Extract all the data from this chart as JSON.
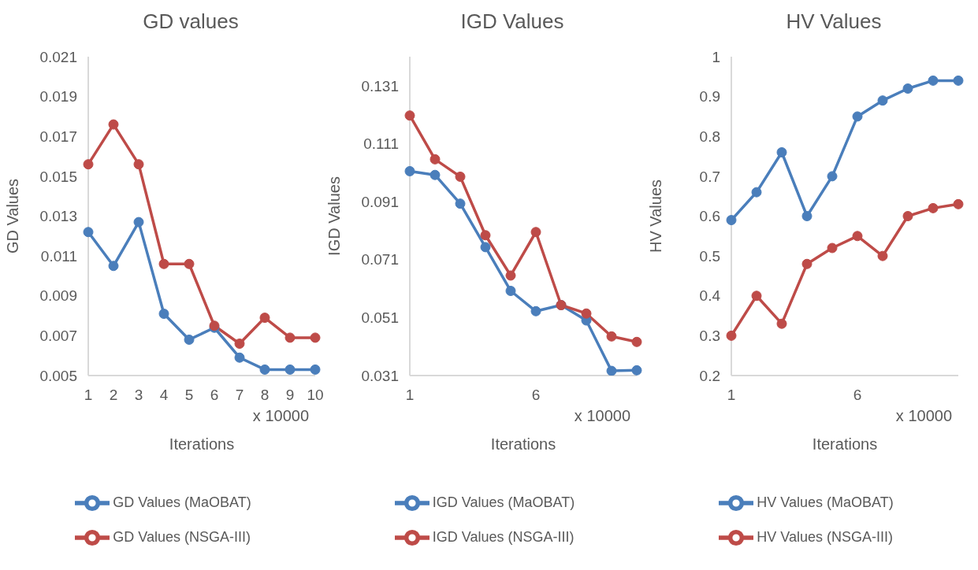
{
  "chart_data": [
    {
      "type": "line",
      "title": "GD values",
      "xlabel": "Iterations",
      "ylabel": "GD Values",
      "annotations": [
        "x 10000"
      ],
      "categories": [
        "1",
        "2",
        "3",
        "4",
        "5",
        "6",
        "7",
        "8",
        "9",
        "10"
      ],
      "ylim": [
        0.005,
        0.021
      ],
      "yticks": [
        0.005,
        0.007,
        0.009,
        0.011,
        0.013,
        0.015,
        0.017,
        0.019,
        0.021
      ],
      "marker": "circle",
      "legend": "bottom",
      "series": [
        {
          "name": "GD Values (MaOBAT)",
          "color": "#4a7ebb",
          "values": [
            0.0122,
            0.0105,
            0.0127,
            0.0081,
            0.0068,
            0.0074,
            0.0059,
            0.0053,
            0.0053,
            0.0053
          ]
        },
        {
          "name": "GD Values (NSGA-III)",
          "color": "#be4b48",
          "values": [
            0.0156,
            0.0176,
            0.0156,
            0.0106,
            0.0106,
            0.0075,
            0.0066,
            0.0079,
            0.0069,
            0.0069
          ]
        }
      ]
    },
    {
      "type": "line",
      "title": "IGD Values",
      "xlabel": "Iterations",
      "ylabel": "IGD Values",
      "annotations": [
        "x 10000"
      ],
      "categories": [
        "1",
        null,
        null,
        null,
        null,
        "6",
        null,
        null,
        null,
        null
      ],
      "ylim": [
        0.031,
        0.141
      ],
      "yticks": [
        0.031,
        0.051,
        0.071,
        0.091,
        0.111,
        0.131
      ],
      "marker": "circle",
      "legend": "bottom",
      "series": [
        {
          "name": "IGD Values (MaOBAT)",
          "color": "#4a7ebb",
          "values": [
            0.1015,
            0.1002,
            0.0903,
            0.0753,
            0.0602,
            0.0532,
            0.0553,
            0.05,
            0.0326,
            0.0328
          ]
        },
        {
          "name": "IGD Values (NSGA-III)",
          "color": "#be4b48",
          "values": [
            0.1207,
            0.1056,
            0.0996,
            0.0794,
            0.0655,
            0.0805,
            0.0553,
            0.0524,
            0.0445,
            0.0426
          ]
        }
      ]
    },
    {
      "type": "line",
      "title": "HV Values",
      "xlabel": "Iterations",
      "ylabel": "HV Values",
      "annotations": [
        "x 10000"
      ],
      "categories": [
        "1",
        null,
        null,
        null,
        null,
        "6",
        null,
        null,
        null,
        null
      ],
      "ylim": [
        0.2,
        1
      ],
      "yticks": [
        0.2,
        0.3,
        0.4,
        0.5,
        0.6,
        0.7,
        0.8,
        0.9,
        1
      ],
      "marker": "circle",
      "legend": "bottom",
      "series": [
        {
          "name": "HV Values (MaOBAT)",
          "color": "#4a7ebb",
          "values": [
            0.59,
            0.66,
            0.76,
            0.6,
            0.7,
            0.85,
            0.89,
            0.92,
            0.94,
            0.94
          ]
        },
        {
          "name": "HV Values (NSGA-III)",
          "color": "#be4b48",
          "values": [
            0.3,
            0.4,
            0.33,
            0.48,
            0.52,
            0.55,
            0.5,
            0.6,
            0.62,
            0.63
          ]
        }
      ]
    }
  ]
}
